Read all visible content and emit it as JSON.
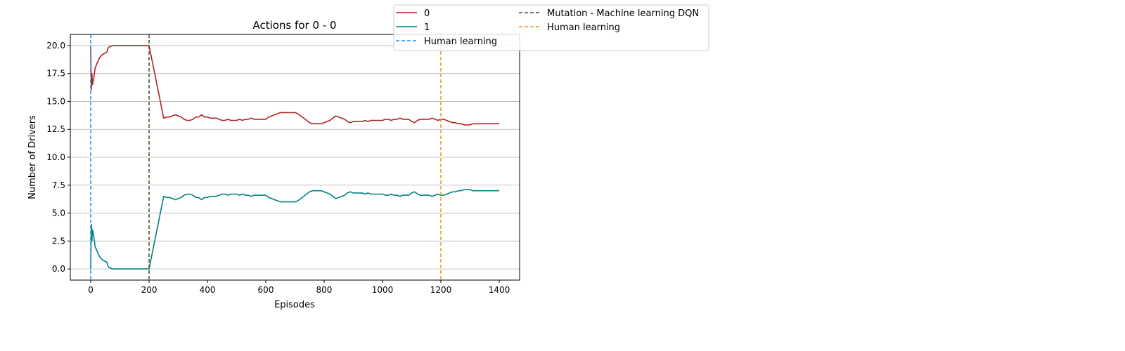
{
  "chart_data": {
    "type": "line",
    "title": "Actions for 0 - 0",
    "xlabel": "Episodes",
    "ylabel": "Number of Drivers",
    "xlim": [
      -70,
      1470
    ],
    "ylim": [
      -1.0,
      21.0
    ],
    "xticks": [
      0,
      200,
      400,
      600,
      800,
      1000,
      1200,
      1400
    ],
    "xtick_labels": [
      "0",
      "200",
      "400",
      "600",
      "800",
      "1000",
      "1200",
      "1400"
    ],
    "yticks": [
      0.0,
      2.5,
      5.0,
      7.5,
      10.0,
      12.5,
      15.0,
      17.5,
      20.0
    ],
    "ytick_labels": [
      "0.0",
      "2.5",
      "5.0",
      "7.5",
      "10.0",
      "12.5",
      "15.0",
      "17.5",
      "20.0"
    ],
    "grid": "y-major",
    "legend_position": "top-right-outside",
    "series": [
      {
        "name": "0",
        "color": "#b22222",
        "x": [
          0,
          2,
          4,
          6,
          10,
          15,
          20,
          30,
          40,
          55,
          60,
          65,
          75,
          90,
          120,
          160,
          200,
          250,
          260,
          270,
          280,
          290,
          300,
          310,
          320,
          330,
          340,
          350,
          360,
          370,
          380,
          390,
          400,
          410,
          420,
          430,
          440,
          450,
          460,
          470,
          480,
          490,
          500,
          510,
          520,
          530,
          540,
          550,
          560,
          570,
          580,
          590,
          600,
          610,
          620,
          630,
          640,
          650,
          660,
          670,
          680,
          690,
          700,
          710,
          720,
          730,
          740,
          750,
          760,
          770,
          780,
          790,
          800,
          810,
          820,
          830,
          840,
          850,
          860,
          870,
          880,
          890,
          900,
          910,
          920,
          930,
          940,
          950,
          960,
          970,
          980,
          990,
          1000,
          1010,
          1020,
          1030,
          1040,
          1050,
          1060,
          1070,
          1080,
          1090,
          1100,
          1110,
          1120,
          1130,
          1140,
          1150,
          1160,
          1170,
          1180,
          1190,
          1200,
          1210,
          1220,
          1230,
          1240,
          1250,
          1260,
          1270,
          1280,
          1290,
          1300,
          1310,
          1320,
          1340,
          1360,
          1380,
          1400
        ],
        "y": [
          20.0,
          16.0,
          17.5,
          16.5,
          17.0,
          18.0,
          18.3,
          18.9,
          19.2,
          19.4,
          19.8,
          19.9,
          20.0,
          20.0,
          20.0,
          20.0,
          20.0,
          13.5,
          13.6,
          13.6,
          13.7,
          13.8,
          13.7,
          13.6,
          13.4,
          13.3,
          13.3,
          13.4,
          13.6,
          13.6,
          13.8,
          13.6,
          13.6,
          13.5,
          13.5,
          13.5,
          13.4,
          13.3,
          13.3,
          13.4,
          13.3,
          13.3,
          13.3,
          13.4,
          13.3,
          13.4,
          13.4,
          13.5,
          13.4,
          13.4,
          13.4,
          13.4,
          13.4,
          13.6,
          13.7,
          13.8,
          13.9,
          14.0,
          14.0,
          14.0,
          14.0,
          14.0,
          14.0,
          13.9,
          13.7,
          13.5,
          13.3,
          13.1,
          13.0,
          13.0,
          13.0,
          13.0,
          13.1,
          13.2,
          13.3,
          13.5,
          13.7,
          13.6,
          13.5,
          13.4,
          13.2,
          13.1,
          13.2,
          13.2,
          13.2,
          13.2,
          13.3,
          13.2,
          13.3,
          13.3,
          13.3,
          13.3,
          13.3,
          13.4,
          13.4,
          13.3,
          13.4,
          13.4,
          13.5,
          13.4,
          13.4,
          13.4,
          13.2,
          13.1,
          13.3,
          13.4,
          13.4,
          13.4,
          13.4,
          13.5,
          13.4,
          13.3,
          13.4,
          13.4,
          13.3,
          13.2,
          13.1,
          13.1,
          13.0,
          13.0,
          12.9,
          12.9,
          12.9,
          13.0,
          13.0,
          13.0,
          13.0,
          13.0,
          13.0
        ],
        "line_style": "solid"
      },
      {
        "name": "1",
        "color": "#008080",
        "x": [
          0,
          2,
          4,
          6,
          10,
          15,
          20,
          30,
          40,
          55,
          60,
          65,
          75,
          90,
          120,
          160,
          200,
          250,
          260,
          270,
          280,
          290,
          300,
          310,
          320,
          330,
          340,
          350,
          360,
          370,
          380,
          390,
          400,
          410,
          420,
          430,
          440,
          450,
          460,
          470,
          480,
          490,
          500,
          510,
          520,
          530,
          540,
          550,
          560,
          570,
          580,
          590,
          600,
          610,
          620,
          630,
          640,
          650,
          660,
          670,
          680,
          690,
          700,
          710,
          720,
          730,
          740,
          750,
          760,
          770,
          780,
          790,
          800,
          810,
          820,
          830,
          840,
          850,
          860,
          870,
          880,
          890,
          900,
          910,
          920,
          930,
          940,
          950,
          960,
          970,
          980,
          990,
          1000,
          1010,
          1020,
          1030,
          1040,
          1050,
          1060,
          1070,
          1080,
          1090,
          1100,
          1110,
          1120,
          1130,
          1140,
          1150,
          1160,
          1170,
          1180,
          1190,
          1200,
          1210,
          1220,
          1230,
          1240,
          1250,
          1260,
          1270,
          1280,
          1290,
          1300,
          1310,
          1320,
          1340,
          1360,
          1380,
          1400
        ],
        "y": [
          0.0,
          4.0,
          2.5,
          3.5,
          3.0,
          2.0,
          1.7,
          1.1,
          0.8,
          0.6,
          0.2,
          0.1,
          0.0,
          0.0,
          0.0,
          0.0,
          0.0,
          6.5,
          6.4,
          6.4,
          6.3,
          6.2,
          6.3,
          6.4,
          6.6,
          6.7,
          6.7,
          6.6,
          6.4,
          6.4,
          6.2,
          6.4,
          6.4,
          6.5,
          6.5,
          6.5,
          6.6,
          6.7,
          6.7,
          6.6,
          6.7,
          6.7,
          6.7,
          6.6,
          6.7,
          6.6,
          6.6,
          6.5,
          6.6,
          6.6,
          6.6,
          6.6,
          6.6,
          6.4,
          6.3,
          6.2,
          6.1,
          6.0,
          6.0,
          6.0,
          6.0,
          6.0,
          6.0,
          6.1,
          6.3,
          6.5,
          6.7,
          6.9,
          7.0,
          7.0,
          7.0,
          7.0,
          6.9,
          6.8,
          6.7,
          6.5,
          6.3,
          6.4,
          6.5,
          6.6,
          6.8,
          6.9,
          6.8,
          6.8,
          6.8,
          6.8,
          6.7,
          6.8,
          6.7,
          6.7,
          6.7,
          6.7,
          6.7,
          6.6,
          6.6,
          6.7,
          6.6,
          6.6,
          6.5,
          6.6,
          6.6,
          6.6,
          6.8,
          6.9,
          6.7,
          6.6,
          6.6,
          6.6,
          6.6,
          6.5,
          6.6,
          6.7,
          6.6,
          6.6,
          6.7,
          6.8,
          6.9,
          6.9,
          7.0,
          7.0,
          7.1,
          7.1,
          7.1,
          7.0,
          7.0,
          7.0,
          7.0,
          7.0,
          7.0
        ],
        "line_style": "solid"
      }
    ],
    "vlines": [
      {
        "name": "Human learning",
        "x": 0,
        "color": "#1e88e5",
        "line_style": "dashed"
      },
      {
        "name": "Mutation - Machine learning DQN",
        "x": 200,
        "color": "#3b5323",
        "line_style": "dashed"
      },
      {
        "name": "Human learning",
        "x": 1200,
        "color": "#e89a1a",
        "line_style": "dashed"
      }
    ],
    "legend": [
      {
        "label": "0",
        "color": "#b22222",
        "style": "solid"
      },
      {
        "label": "Mutation - Machine learning DQN",
        "color": "#3b5323",
        "style": "dashed"
      },
      {
        "label": "1",
        "color": "#008080",
        "style": "solid"
      },
      {
        "label": "Human learning",
        "color": "#e89a1a",
        "style": "dashed"
      },
      {
        "label": "Human learning",
        "color": "#1e88e5",
        "style": "dashed"
      }
    ]
  }
}
